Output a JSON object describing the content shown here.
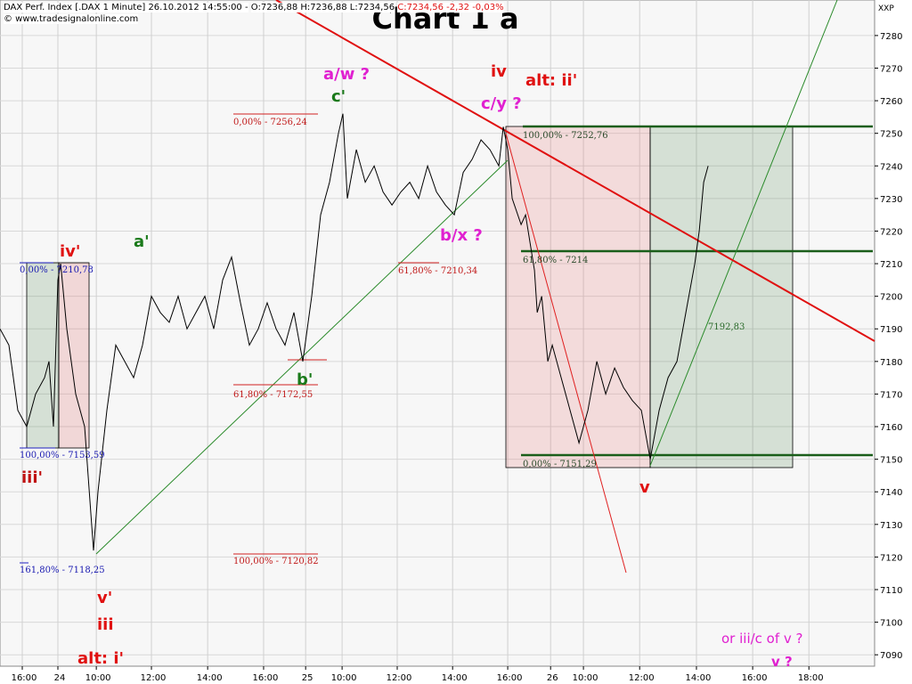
{
  "header": {
    "instrument": "DAX Perf. Index [.DAX 1 Minute] 26.10.2012 14:55:00 -",
    "ohl": "O:7236,88 H:7236,88 L:7234,56",
    "change": "C:7234,56 -2,32 -0,03%",
    "copyright": "© www.tradesignalonline.com",
    "symbol": "XXP"
  },
  "chart_data": {
    "type": "line",
    "title": "Chart 1 a",
    "x": [
      0,
      0.32,
      0.64,
      0.96,
      1.28,
      1.6,
      1.76,
      1.92,
      2.08,
      2.18,
      2.4,
      2.72,
      3.04,
      3.36,
      3.52,
      3.84,
      4.16,
      4.48,
      4.8,
      5.12,
      5.44,
      5.76,
      6.08,
      6.4,
      6.72,
      7.04,
      7.36,
      7.68,
      8.0,
      8.32,
      8.64,
      8.96,
      9.28,
      9.6,
      9.92,
      10.24,
      10.56,
      10.88,
      11.2,
      11.52,
      11.84,
      12.16,
      12.32,
      12.48,
      12.8,
      13.12,
      13.44,
      13.76,
      14.08,
      14.4,
      14.72,
      15.04,
      15.36,
      15.68,
      16.0,
      16.32,
      16.64,
      16.96,
      17.28,
      17.6,
      17.92,
      18.08,
      18.24,
      18.4,
      18.72,
      18.88,
      19.2,
      19.3,
      19.46,
      19.68,
      19.84,
      20.16,
      20.48,
      20.8,
      21.12,
      21.44,
      21.76,
      22.08,
      22.4,
      22.72,
      23.04,
      23.36,
      23.68,
      24.0,
      24.32,
      24.64,
      24.96,
      25.12,
      25.28,
      25.44
    ],
    "series": [
      {
        "name": "DAX",
        "color": "#000000",
        "values": [
          7190,
          7185,
          7165,
          7160,
          7170,
          7175,
          7180,
          7160,
          7205,
          7210,
          7190,
          7170,
          7160,
          7122,
          7140,
          7165,
          7185,
          7180,
          7175,
          7185,
          7200,
          7195,
          7192,
          7200,
          7190,
          7195,
          7200,
          7190,
          7205,
          7212,
          7198,
          7185,
          7190,
          7198,
          7190,
          7185,
          7195,
          7180,
          7200,
          7225,
          7235,
          7250,
          7256,
          7230,
          7245,
          7235,
          7240,
          7232,
          7228,
          7232,
          7235,
          7230,
          7240,
          7232,
          7228,
          7225,
          7238,
          7242,
          7248,
          7245,
          7240,
          7252,
          7245,
          7230,
          7222,
          7225,
          7208,
          7195,
          7200,
          7180,
          7185,
          7175,
          7165,
          7155,
          7165,
          7180,
          7170,
          7178,
          7172,
          7168,
          7165,
          7150,
          7165,
          7175,
          7180,
          7195,
          7210,
          7220,
          7235,
          7240
        ]
      }
    ],
    "xlim": [
      0,
      31.42
    ],
    "xticks": [
      {
        "value": 0.8,
        "label": "16:00"
      },
      {
        "value": 2.08,
        "label": "24"
      },
      {
        "value": 3.46,
        "label": "10:00"
      },
      {
        "value": 5.44,
        "label": "12:00"
      },
      {
        "value": 7.46,
        "label": "14:00"
      },
      {
        "value": 9.47,
        "label": "16:00"
      },
      {
        "value": 10.98,
        "label": "25"
      },
      {
        "value": 12.29,
        "label": "10:00"
      },
      {
        "value": 14.27,
        "label": "12:00"
      },
      {
        "value": 16.26,
        "label": "14:00"
      },
      {
        "value": 18.24,
        "label": "16:00"
      },
      {
        "value": 19.78,
        "label": "26"
      },
      {
        "value": 20.96,
        "label": "10:00"
      },
      {
        "value": 22.98,
        "label": "12:00"
      },
      {
        "value": 25.02,
        "label": "14:00"
      },
      {
        "value": 27.04,
        "label": "16:00"
      },
      {
        "value": 29.06,
        "label": "18:00"
      }
    ],
    "ylim": [
      7086.5,
      7290.9
    ],
    "yticks": [
      7090,
      7100,
      7110,
      7120,
      7130,
      7140,
      7150,
      7160,
      7170,
      7180,
      7190,
      7200,
      7210,
      7220,
      7230,
      7240,
      7250,
      7260,
      7270,
      7280
    ],
    "grid": true
  },
  "annotations": {
    "waves": [
      "a/w ?",
      "c'",
      "iv",
      "alt: ii'",
      "c/y ?",
      "b/x ?",
      "a'",
      "iv'",
      "iii'",
      "b'",
      "v",
      "v'",
      "iii",
      "alt: i'",
      "or iii/c of v ?",
      "v ?"
    ],
    "fib": [
      "0,00% - 7256,24",
      "61,80% - 7210,34",
      "61,80% - 7172,55",
      "100,00% - 7120,82",
      "0,00% - 7210,78",
      "100,00% - 7153,59",
      "161,80% - 7118,25",
      "100,00% - 7252,76",
      "61,80% - 7214",
      "0,00% - 7151,29",
      "7192,83"
    ]
  }
}
